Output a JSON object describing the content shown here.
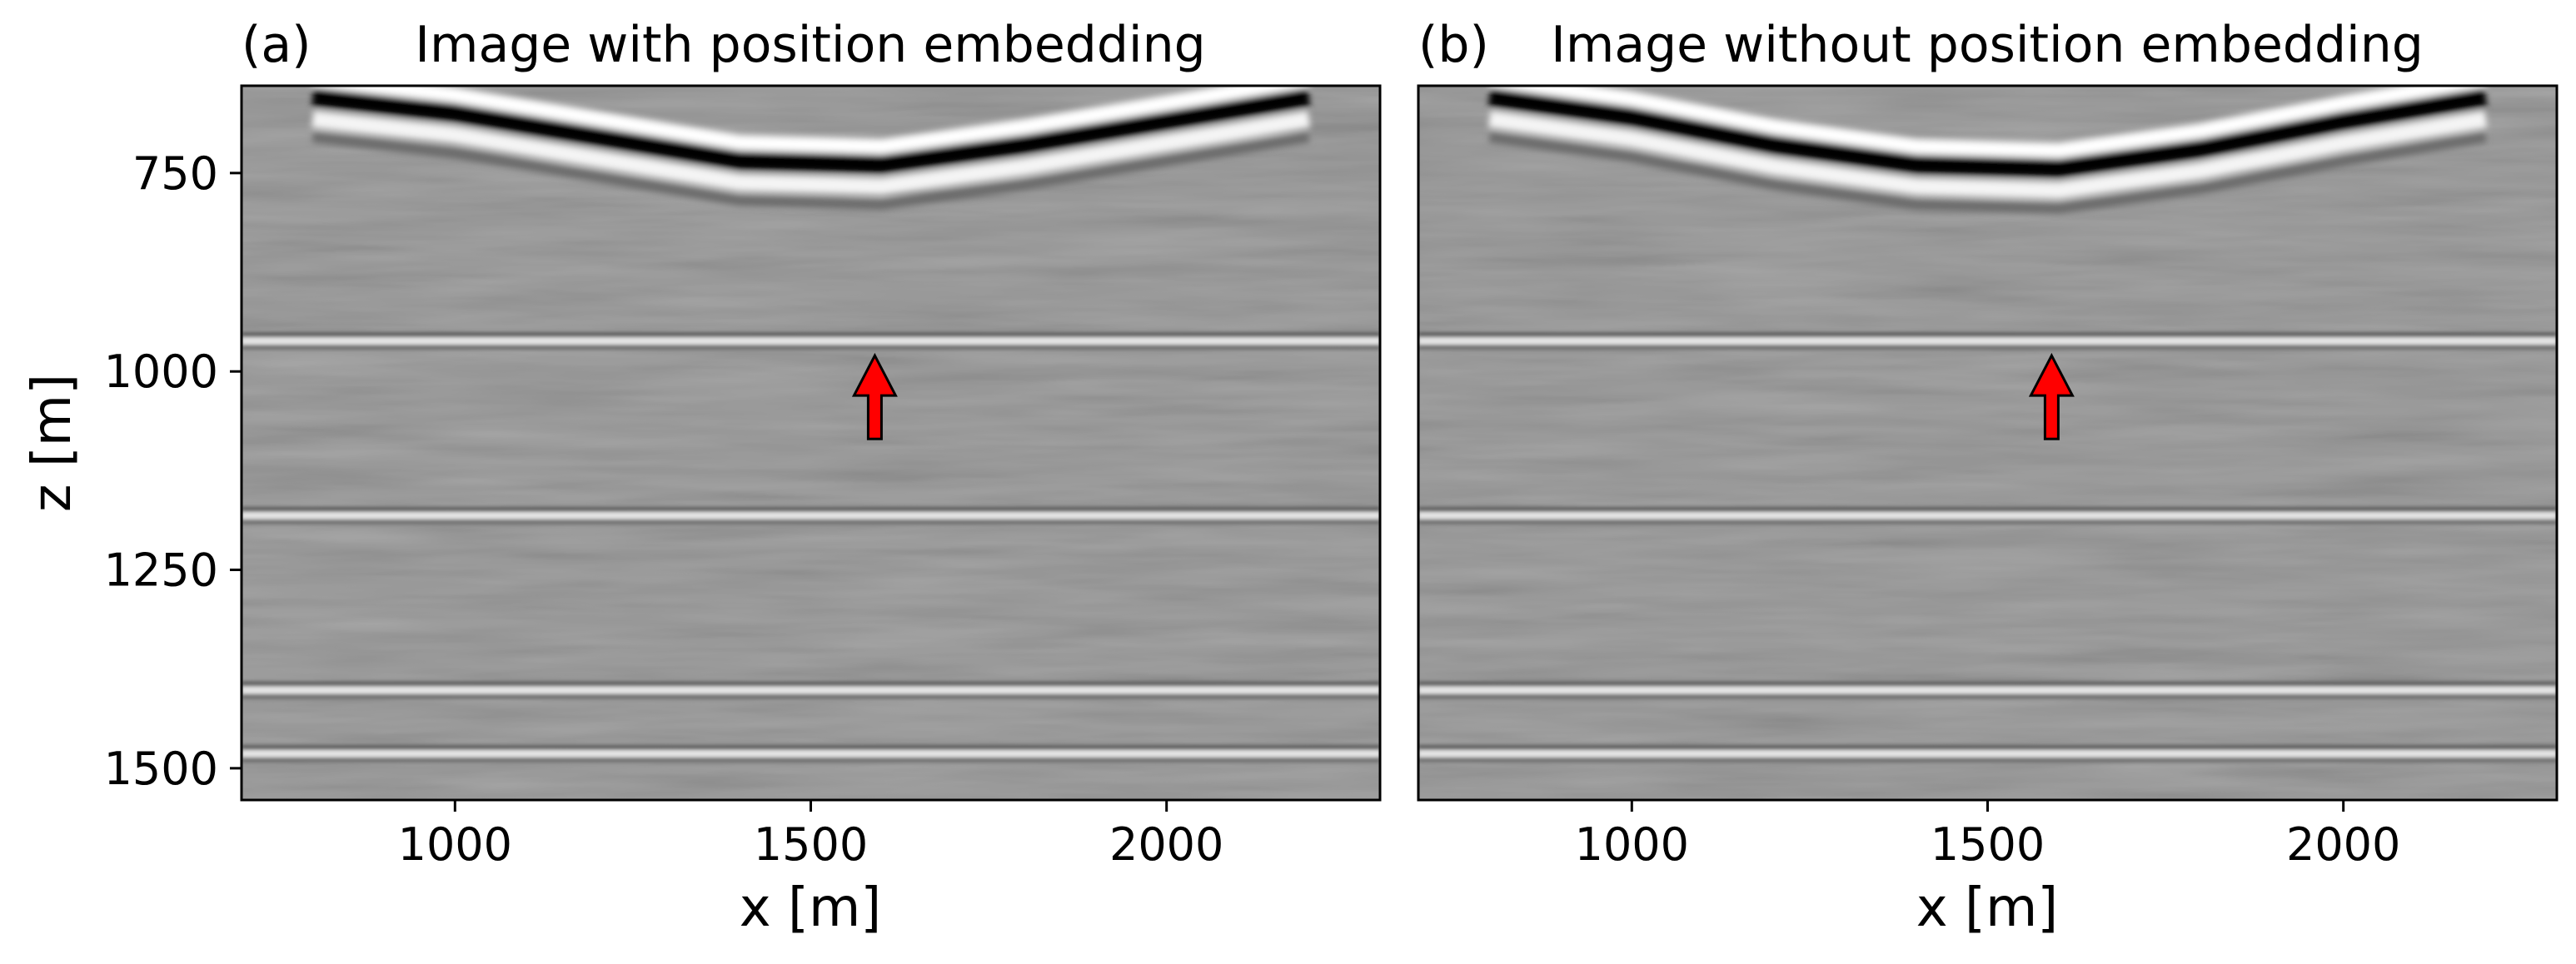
{
  "chart_data": [
    {
      "type": "heatmap",
      "panel_label": "(a)",
      "title": "Image with position embedding",
      "xlabel": "x [m]",
      "ylabel": "z [m]",
      "xlim": [
        700,
        2300
      ],
      "ylim": [
        1540,
        640
      ],
      "x_ticks": [
        1000,
        1500,
        2000
      ],
      "y_ticks": [
        750,
        1000,
        1250,
        1500
      ],
      "colormap": "gray",
      "seafloor": {
        "x": [
          800,
          1000,
          1200,
          1400,
          1600,
          1800,
          2000,
          2200
        ],
        "z": [
          640,
          660,
          690,
          720,
          725,
          700,
          670,
          640
        ]
      },
      "horizons_z": [
        960,
        1180,
        1400,
        1480
      ],
      "annotation": {
        "type": "arrow",
        "color": "#ff0000",
        "x": 1590,
        "z_tail": 1085,
        "z_head": 980
      },
      "grid": false
    },
    {
      "type": "heatmap",
      "panel_label": "(b)",
      "title": "Image without position embedding",
      "xlabel": "x [m]",
      "ylabel": "",
      "xlim": [
        700,
        2300
      ],
      "ylim": [
        1540,
        640
      ],
      "x_ticks": [
        1000,
        1500,
        2000
      ],
      "y_ticks": [],
      "colormap": "gray",
      "seafloor": {
        "x": [
          800,
          1000,
          1200,
          1400,
          1600,
          1800,
          2000,
          2200
        ],
        "z": [
          640,
          665,
          700,
          725,
          730,
          705,
          670,
          640
        ]
      },
      "horizons_z": [
        960,
        1180,
        1400,
        1480
      ],
      "annotation": {
        "type": "arrow",
        "color": "#ff0000",
        "x": 1590,
        "z_tail": 1085,
        "z_head": 980
      },
      "grid": false
    }
  ]
}
